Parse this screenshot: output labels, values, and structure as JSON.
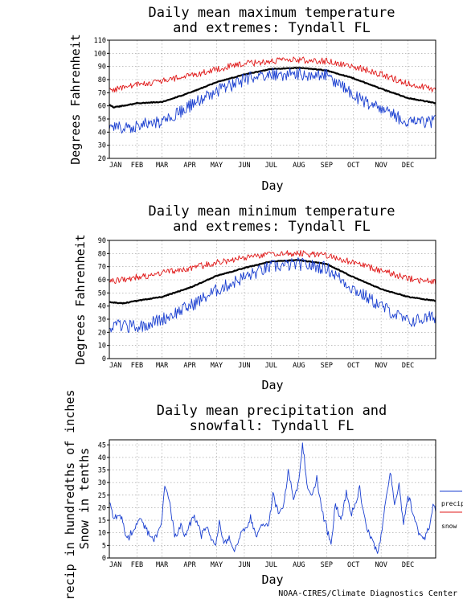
{
  "credit": "NOAA-CIRES/Climate Diagnostics Center",
  "colors": {
    "mean": "#000000",
    "max_extreme": "#e01818",
    "min_extreme": "#1a3fd0",
    "precip": "#1a3fd0",
    "snow": "#e01818"
  },
  "chart_data": [
    {
      "type": "line",
      "title_lines": [
        "Daily mean maximum temperature",
        "and extremes: Tyndall FL"
      ],
      "xlabel": "Day",
      "ylabel": "Degrees Fahrenheit",
      "ylim": [
        20,
        110
      ],
      "yticks": [
        20,
        30,
        40,
        50,
        60,
        70,
        80,
        90,
        100,
        110
      ],
      "categories": [
        "JAN",
        "FEB",
        "MAR",
        "APR",
        "MAY",
        "JUN",
        "JUL",
        "AUG",
        "SEP",
        "OCT",
        "NOV",
        "DEC"
      ],
      "grid": true,
      "series": [
        {
          "role": "max_extreme",
          "keypoints": [
            [
              0,
              72
            ],
            [
              31,
              76
            ],
            [
              59,
              79
            ],
            [
              90,
              83
            ],
            [
              120,
              88
            ],
            [
              151,
              92
            ],
            [
              181,
              94
            ],
            [
              212,
              95
            ],
            [
              243,
              94
            ],
            [
              273,
              90
            ],
            [
              304,
              84
            ],
            [
              334,
              77
            ],
            [
              365,
              72
            ]
          ],
          "jitter": 2.5
        },
        {
          "role": "mean",
          "keypoints": [
            [
              0,
              61
            ],
            [
              5,
              59
            ],
            [
              15,
              60
            ],
            [
              31,
              62
            ],
            [
              59,
              63
            ],
            [
              90,
              70
            ],
            [
              120,
              78
            ],
            [
              151,
              84
            ],
            [
              181,
              88
            ],
            [
              212,
              89
            ],
            [
              243,
              87
            ],
            [
              273,
              81
            ],
            [
              304,
              73
            ],
            [
              334,
              66
            ],
            [
              365,
              62
            ]
          ],
          "jitter": 0.3
        },
        {
          "role": "min_extreme",
          "keypoints": [
            [
              0,
              43
            ],
            [
              31,
              45
            ],
            [
              59,
              48
            ],
            [
              90,
              60
            ],
            [
              120,
              71
            ],
            [
              151,
              80
            ],
            [
              181,
              84
            ],
            [
              212,
              84
            ],
            [
              243,
              83
            ],
            [
              273,
              68
            ],
            [
              304,
              57
            ],
            [
              334,
              48
            ],
            [
              365,
              48
            ]
          ],
          "jitter": 5
        }
      ]
    },
    {
      "type": "line",
      "title_lines": [
        "Daily mean minimum temperature",
        "and extremes: Tyndall FL"
      ],
      "xlabel": "Day",
      "ylabel": "Degrees Fahrenheit",
      "ylim": [
        0,
        90
      ],
      "yticks": [
        0,
        10,
        20,
        30,
        40,
        50,
        60,
        70,
        80,
        90
      ],
      "categories": [
        "JAN",
        "FEB",
        "MAR",
        "APR",
        "MAY",
        "JUN",
        "JUL",
        "AUG",
        "SEP",
        "OCT",
        "NOV",
        "DEC"
      ],
      "grid": true,
      "series": [
        {
          "role": "max_extreme",
          "keypoints": [
            [
              0,
              59
            ],
            [
              31,
              62
            ],
            [
              59,
              65
            ],
            [
              90,
              69
            ],
            [
              120,
              73
            ],
            [
              151,
              77
            ],
            [
              181,
              80
            ],
            [
              212,
              80
            ],
            [
              243,
              79
            ],
            [
              273,
              73
            ],
            [
              304,
              67
            ],
            [
              334,
              61
            ],
            [
              365,
              58
            ]
          ],
          "jitter": 2.5
        },
        {
          "role": "mean",
          "keypoints": [
            [
              0,
              43
            ],
            [
              15,
              42
            ],
            [
              31,
              44
            ],
            [
              59,
              47
            ],
            [
              90,
              54
            ],
            [
              120,
              63
            ],
            [
              151,
              69
            ],
            [
              181,
              74
            ],
            [
              212,
              75
            ],
            [
              243,
              72
            ],
            [
              273,
              62
            ],
            [
              304,
              53
            ],
            [
              334,
              47
            ],
            [
              365,
              44
            ]
          ],
          "jitter": 0.3
        },
        {
          "role": "min_extreme",
          "keypoints": [
            [
              0,
              25
            ],
            [
              31,
              24
            ],
            [
              59,
              30
            ],
            [
              90,
              40
            ],
            [
              120,
              52
            ],
            [
              151,
              62
            ],
            [
              181,
              70
            ],
            [
              212,
              72
            ],
            [
              243,
              69
            ],
            [
              273,
              53
            ],
            [
              304,
              40
            ],
            [
              334,
              28
            ],
            [
              365,
              32
            ]
          ],
          "jitter": 5
        }
      ]
    },
    {
      "type": "line",
      "title_lines": [
        "Daily mean precipitation and",
        "snowfall: Tyndall FL"
      ],
      "xlabel": "Day",
      "ylabel_lines": [
        "Precip in hundredths of inches",
        "Snow in tenths"
      ],
      "ylim": [
        0,
        47
      ],
      "yticks": [
        0,
        5,
        10,
        15,
        20,
        25,
        30,
        35,
        40,
        45
      ],
      "categories": [
        "JAN",
        "FEB",
        "MAR",
        "APR",
        "MAY",
        "JUN",
        "JUL",
        "AUG",
        "SEP",
        "OCT",
        "NOV",
        "DEC"
      ],
      "grid": true,
      "legend": {
        "placement": "right",
        "entries": [
          "precip",
          "snow"
        ]
      },
      "series": [
        {
          "role": "precip",
          "name": "precip",
          "keypoints": [
            [
              0,
              22
            ],
            [
              5,
              15
            ],
            [
              12,
              18
            ],
            [
              20,
              7
            ],
            [
              28,
              12
            ],
            [
              35,
              16
            ],
            [
              43,
              10
            ],
            [
              50,
              7
            ],
            [
              58,
              12
            ],
            [
              62,
              30
            ],
            [
              68,
              22
            ],
            [
              73,
              8
            ],
            [
              80,
              13
            ],
            [
              85,
              9
            ],
            [
              95,
              17
            ],
            [
              103,
              9
            ],
            [
              110,
              12
            ],
            [
              118,
              4
            ],
            [
              123,
              14
            ],
            [
              128,
              6
            ],
            [
              135,
              8
            ],
            [
              140,
              3
            ],
            [
              147,
              10
            ],
            [
              152,
              12
            ],
            [
              158,
              16
            ],
            [
              165,
              8
            ],
            [
              172,
              14
            ],
            [
              178,
              12
            ],
            [
              183,
              25
            ],
            [
              189,
              18
            ],
            [
              195,
              20
            ],
            [
              200,
              34
            ],
            [
              206,
              24
            ],
            [
              212,
              30
            ],
            [
              216,
              46
            ],
            [
              221,
              30
            ],
            [
              227,
              24
            ],
            [
              232,
              32
            ],
            [
              237,
              20
            ],
            [
              243,
              12
            ],
            [
              248,
              5
            ],
            [
              253,
              22
            ],
            [
              259,
              14
            ],
            [
              265,
              26
            ],
            [
              270,
              17
            ],
            [
              275,
              22
            ],
            [
              280,
              28
            ],
            [
              285,
              16
            ],
            [
              290,
              10
            ],
            [
              295,
              6
            ],
            [
              300,
              1
            ],
            [
              305,
              12
            ],
            [
              310,
              25
            ],
            [
              314,
              35
            ],
            [
              319,
              22
            ],
            [
              324,
              30
            ],
            [
              329,
              14
            ],
            [
              334,
              25
            ],
            [
              340,
              18
            ],
            [
              346,
              10
            ],
            [
              352,
              8
            ],
            [
              358,
              12
            ],
            [
              362,
              20
            ],
            [
              365,
              19
            ]
          ],
          "jitter": 1.5
        },
        {
          "role": "snow",
          "name": "snow",
          "keypoints": [
            [
              0,
              0
            ],
            [
              365,
              0
            ]
          ],
          "jitter": 0
        }
      ]
    }
  ]
}
